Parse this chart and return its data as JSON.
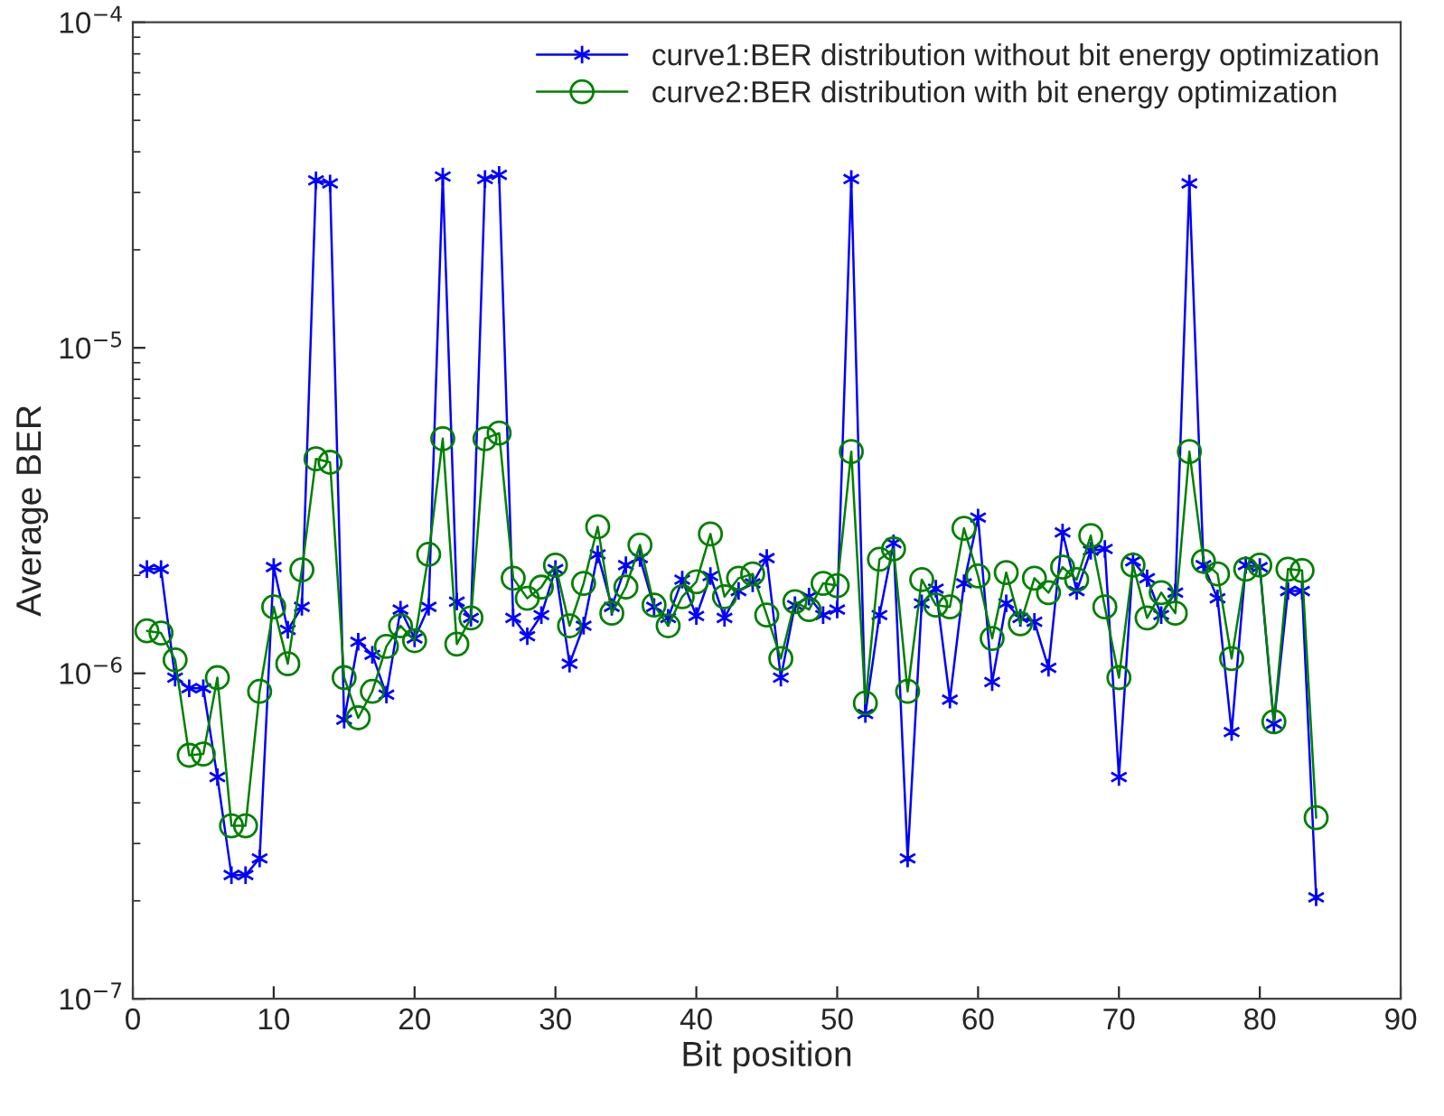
{
  "chart_data": {
    "type": "line",
    "xlabel": "Bit position",
    "ylabel": "Average BER",
    "log": "y",
    "x": [
      1,
      2,
      3,
      4,
      5,
      6,
      7,
      8,
      9,
      10,
      11,
      12,
      13,
      14,
      15,
      16,
      17,
      18,
      19,
      20,
      21,
      22,
      23,
      24,
      25,
      26,
      27,
      28,
      29,
      30,
      31,
      32,
      33,
      34,
      35,
      36,
      37,
      38,
      39,
      40,
      41,
      42,
      43,
      44,
      45,
      46,
      47,
      48,
      49,
      50,
      51,
      52,
      53,
      54,
      55,
      56,
      57,
      58,
      59,
      60,
      61,
      62,
      63,
      64,
      65,
      66,
      67,
      68,
      69,
      70,
      71,
      72,
      73,
      74,
      75,
      76,
      77,
      78,
      79,
      80,
      81,
      82,
      83,
      84
    ],
    "xlim": [
      0,
      90
    ],
    "xticks": [
      0,
      10,
      20,
      30,
      40,
      50,
      60,
      70,
      80,
      90
    ],
    "ylim": [
      1e-07,
      0.0001
    ],
    "yticks": [
      {
        "value": 1e-07,
        "label": "10$^{−7}$"
      },
      {
        "value": 1e-06,
        "label": "10$^{−6}$"
      },
      {
        "value": 1e-05,
        "label": "10$^{−5}$"
      },
      {
        "value": 0.0001,
        "label": "10$^{−4}$"
      }
    ],
    "grid": false,
    "legend": "top right",
    "series": [
      {
        "name": "curve1:BER distribution without bit energy optimization",
        "color": "#0000ff",
        "marker": "cross",
        "values": [
          2.09e-06,
          2.09e-06,
          9.7e-07,
          9e-07,
          9e-07,
          4.8e-07,
          2.4e-07,
          2.4e-07,
          2.7e-07,
          2.12e-06,
          1.36e-06,
          1.6e-06,
          3.27e-05,
          3.2e-05,
          7.2e-07,
          1.25e-06,
          1.14e-06,
          8.6e-07,
          1.57e-06,
          1.28e-06,
          1.6e-06,
          3.36e-05,
          1.66e-06,
          1.48e-06,
          3.3e-05,
          3.4e-05,
          1.48e-06,
          1.3e-06,
          1.51e-06,
          2.09e-06,
          1.07e-06,
          1.4e-06,
          2.32e-06,
          1.6e-06,
          2.15e-06,
          2.26e-06,
          1.6e-06,
          1.48e-06,
          1.94e-06,
          1.5e-06,
          1.99e-06,
          1.48e-06,
          1.79e-06,
          1.89e-06,
          2.26e-06,
          9.7e-07,
          1.62e-06,
          1.72e-06,
          1.51e-06,
          1.57e-06,
          3.3e-05,
          7.5e-07,
          1.51e-06,
          2.51e-06,
          2.7e-07,
          1.64e-06,
          1.82e-06,
          8.3e-07,
          1.89e-06,
          3.01e-06,
          9.4e-07,
          1.64e-06,
          1.48e-06,
          1.44e-06,
          1.04e-06,
          2.71e-06,
          1.79e-06,
          2.38e-06,
          2.41e-06,
          4.8e-07,
          2.21e-06,
          1.96e-06,
          1.51e-06,
          1.77e-06,
          3.2e-05,
          2.15e-06,
          1.7e-06,
          6.6e-07,
          2.15e-06,
          2.12e-06,
          7e-07,
          1.79e-06,
          1.79e-06,
          2.05e-07
        ]
      },
      {
        "name": "curve2:BER distribution with bit energy optimization",
        "color": "#008000",
        "marker": "circle",
        "values": [
          1.35e-06,
          1.33e-06,
          1.1e-06,
          5.6e-07,
          5.65e-07,
          9.7e-07,
          3.4e-07,
          3.4e-07,
          8.8e-07,
          1.6e-06,
          1.07e-06,
          2.08e-06,
          4.56e-06,
          4.45e-06,
          9.7e-07,
          7.3e-07,
          8.8e-07,
          1.21e-06,
          1.4e-06,
          1.26e-06,
          2.32e-06,
          5.26e-06,
          1.23e-06,
          1.48e-06,
          5.26e-06,
          5.47e-06,
          1.96e-06,
          1.7e-06,
          1.84e-06,
          2.15e-06,
          1.4e-06,
          1.89e-06,
          2.82e-06,
          1.53e-06,
          1.84e-06,
          2.48e-06,
          1.62e-06,
          1.4e-06,
          1.72e-06,
          1.91e-06,
          2.68e-06,
          1.72e-06,
          1.96e-06,
          2.02e-06,
          1.51e-06,
          1.11e-06,
          1.66e-06,
          1.57e-06,
          1.89e-06,
          1.86e-06,
          4.8e-06,
          8.1e-07,
          2.24e-06,
          2.41e-06,
          8.8e-07,
          1.94e-06,
          1.62e-06,
          1.6e-06,
          2.79e-06,
          1.99e-06,
          1.28e-06,
          2.04e-06,
          1.42e-06,
          1.96e-06,
          1.77e-06,
          2.12e-06,
          1.94e-06,
          2.65e-06,
          1.6e-06,
          9.7e-07,
          2.15e-06,
          1.48e-06,
          1.77e-06,
          1.53e-06,
          4.8e-06,
          2.21e-06,
          2.02e-06,
          1.11e-06,
          2.09e-06,
          2.15e-06,
          7.1e-07,
          2.09e-06,
          2.07e-06,
          3.6e-07
        ]
      }
    ]
  }
}
